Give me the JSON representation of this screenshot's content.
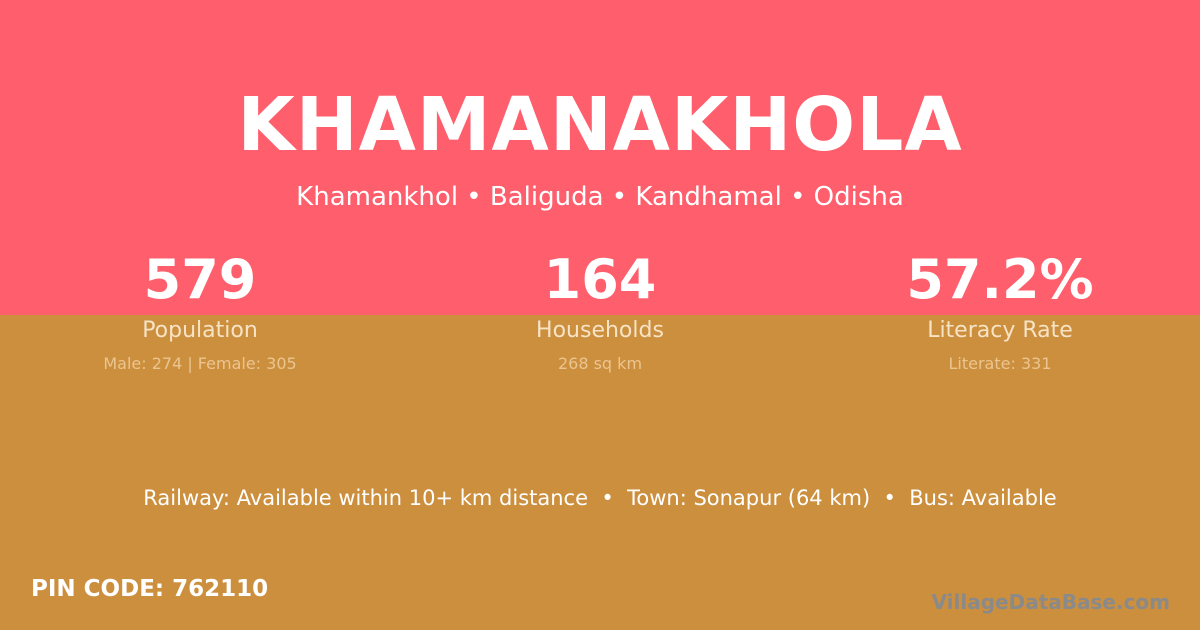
{
  "village": {
    "name": "KHAMANAKHOLA",
    "location": "Khamankhol • Baliguda • Kandhamal • Odisha"
  },
  "stats": [
    {
      "value": "579",
      "label": "Population",
      "detail": "Male: 274 | Female: 305"
    },
    {
      "value": "164",
      "label": "Households",
      "detail": "268 sq km"
    },
    {
      "value": "57.2%",
      "label": "Literacy Rate",
      "detail": "Literate: 331"
    }
  ],
  "facilities": "Railway: Available within 10+ km distance  •  Town: Sonapur (64 km)  •  Bus: Available",
  "pin_code": "PIN CODE: 762110",
  "brand": "VillageDataBase.com",
  "colors": {
    "top": "#ff5e6c",
    "bottom": "#cc8f3e"
  }
}
